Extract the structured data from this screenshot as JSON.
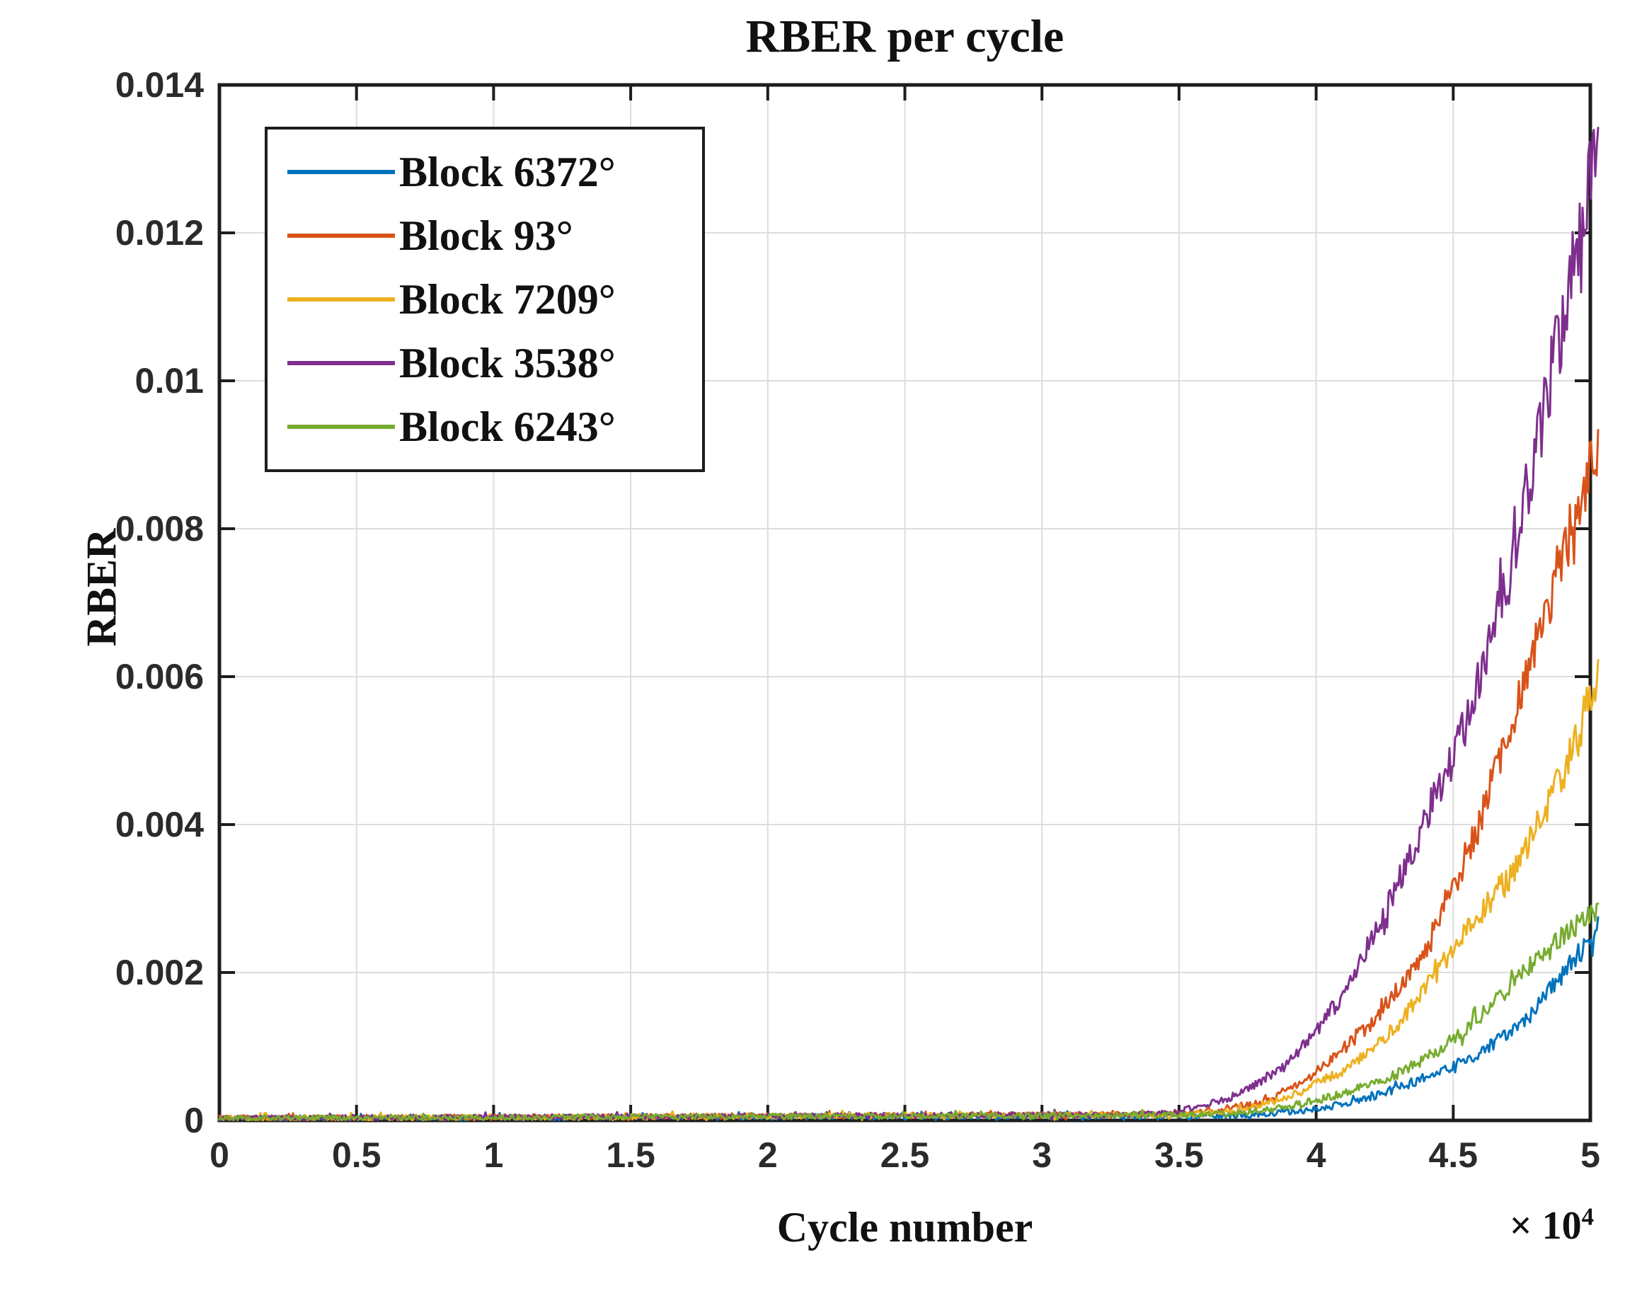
{
  "figure": {
    "title": "RBER per cycle",
    "xlabel": "Cycle number",
    "ylabel": "RBER",
    "x_exponent_base": "× 10",
    "x_exponent_power": "4"
  },
  "colors": {
    "axis": "#1d1d1d",
    "grid": "#dddddd",
    "tick_label": "#2b2b2b",
    "background": "#ffffff"
  },
  "chart_data": {
    "type": "line",
    "title": "RBER per cycle",
    "xlabel": "Cycle number",
    "ylabel": "RBER",
    "x_unit_multiplier": "× 10^4",
    "xlim": [
      0,
      5
    ],
    "ylim": [
      0,
      0.014
    ],
    "grid": true,
    "legend_position": "top-left",
    "x_ticks": [
      0,
      0.5,
      1,
      1.5,
      2,
      2.5,
      3,
      3.5,
      4,
      4.5,
      5
    ],
    "x_tick_labels": [
      "0",
      "0.5",
      "1",
      "1.5",
      "2",
      "2.5",
      "3",
      "3.5",
      "4",
      "4.5",
      "5"
    ],
    "y_ticks": [
      0,
      0.002,
      0.004,
      0.006,
      0.008,
      0.01,
      0.012,
      0.014
    ],
    "y_tick_labels": [
      "0",
      "0.002",
      "0.004",
      "0.006",
      "0.008",
      "0.01",
      "0.012",
      "0.014"
    ],
    "series": [
      {
        "name": "Block 6372°",
        "color": "#0072BD",
        "end_value": 0.0024,
        "end_peak": 0.0027,
        "points": [
          [
            0,
            3e-05
          ],
          [
            3.6,
            6e-05
          ],
          [
            3.8,
            9e-05
          ],
          [
            4.0,
            0.00015
          ],
          [
            4.2,
            0.0003
          ],
          [
            4.4,
            0.00055
          ],
          [
            4.6,
            0.00095
          ],
          [
            4.8,
            0.0015
          ],
          [
            5.0,
            0.00235
          ]
        ]
      },
      {
        "name": "Block 93°",
        "color": "#D95319",
        "end_value": 0.0091,
        "end_peak": 0.01,
        "points": [
          [
            0,
            3e-05
          ],
          [
            3.4,
            8e-05
          ],
          [
            3.6,
            0.00012
          ],
          [
            3.8,
            0.00025
          ],
          [
            4.0,
            0.0006
          ],
          [
            4.2,
            0.0013
          ],
          [
            4.4,
            0.0024
          ],
          [
            4.6,
            0.004
          ],
          [
            4.8,
            0.0062
          ],
          [
            5.0,
            0.0091
          ]
        ]
      },
      {
        "name": "Block 7209°",
        "color": "#EDB120",
        "end_value": 0.0057,
        "end_peak": 0.0061,
        "points": [
          [
            0,
            3e-05
          ],
          [
            3.5,
            8e-05
          ],
          [
            3.7,
            0.00012
          ],
          [
            3.9,
            0.0003
          ],
          [
            4.1,
            0.0007
          ],
          [
            4.3,
            0.0013
          ],
          [
            4.5,
            0.0022
          ],
          [
            4.7,
            0.0033
          ],
          [
            4.9,
            0.0048
          ],
          [
            5.0,
            0.0057
          ]
        ]
      },
      {
        "name": "Block 3538°",
        "color": "#7E2F8E",
        "end_value": 0.0123,
        "end_peak": 0.0131,
        "points": [
          [
            0,
            3e-05
          ],
          [
            3.3,
            8e-05
          ],
          [
            3.5,
            0.00012
          ],
          [
            3.7,
            0.0003
          ],
          [
            3.9,
            0.0008
          ],
          [
            4.1,
            0.0017
          ],
          [
            4.3,
            0.0031
          ],
          [
            4.5,
            0.005
          ],
          [
            4.7,
            0.0075
          ],
          [
            4.9,
            0.0105
          ],
          [
            5.0,
            0.0123
          ]
        ]
      },
      {
        "name": "Block 6243°",
        "color": "#77AC30",
        "end_value": 0.0029,
        "end_peak": 0.0034,
        "points": [
          [
            0,
            3e-05
          ],
          [
            3.5,
            7e-05
          ],
          [
            3.7,
            0.0001
          ],
          [
            3.9,
            0.00018
          ],
          [
            4.1,
            0.00035
          ],
          [
            4.3,
            0.00065
          ],
          [
            4.5,
            0.0011
          ],
          [
            4.7,
            0.0017
          ],
          [
            4.9,
            0.0025
          ],
          [
            5.0,
            0.0029
          ]
        ]
      }
    ]
  }
}
